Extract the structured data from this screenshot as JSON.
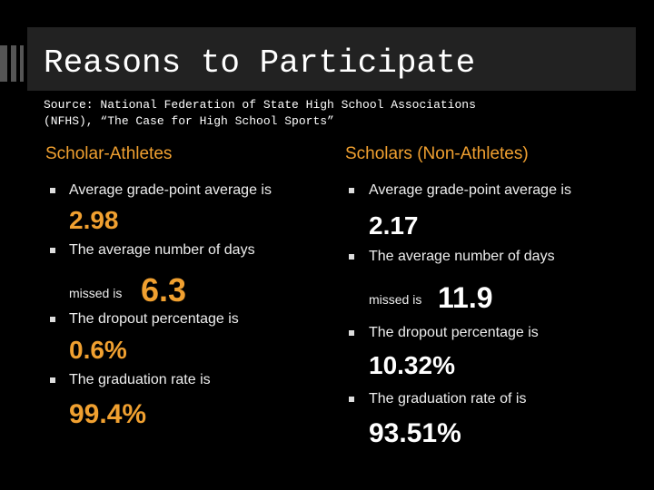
{
  "title": "Reasons to Participate",
  "source": [
    "Source: National Federation of State High School Associations",
    "(NFHS), “The Case for High School Sports”"
  ],
  "columns": [
    {
      "heading": "Scholar-Athletes",
      "items": [
        {
          "text": "Average grade-point average is",
          "value": "2.98"
        },
        {
          "text": "The average number of days",
          "continuation": "missed is",
          "value": "6.3"
        },
        {
          "text": "The dropout percentage is",
          "value": "0.6%"
        },
        {
          "text": "The graduation rate is",
          "value": "99.4%"
        }
      ]
    },
    {
      "heading": "Scholars (Non-Athletes)",
      "items": [
        {
          "text": "Average grade-point average is",
          "value": "2.17"
        },
        {
          "text": "The average number of days",
          "continuation": "missed is",
          "value": "11.9"
        },
        {
          "text": "The dropout percentage is",
          "value": "10.32%"
        },
        {
          "text": "The graduation rate of is",
          "value": "93.51%"
        }
      ]
    }
  ]
}
